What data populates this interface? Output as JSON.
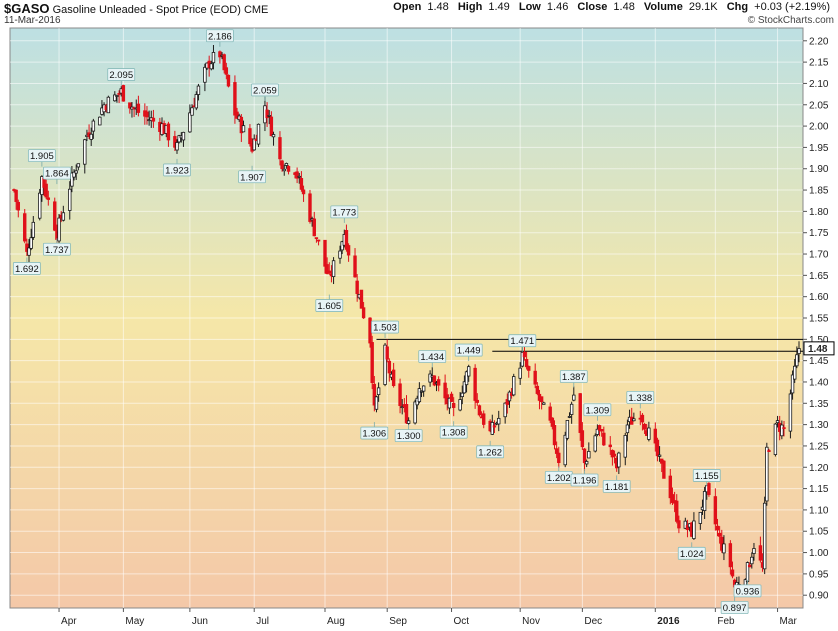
{
  "header": {
    "symbol": "$GASO",
    "description": "Gasoline Unleaded - Spot Price (EOD)",
    "exchange": "CME",
    "date": "11-Mar-2016",
    "open_label": "Open",
    "open": "1.48",
    "high_label": "High",
    "high": "1.49",
    "low_label": "Low",
    "low": "1.46",
    "close_label": "Close",
    "close": "1.48",
    "volume_label": "Volume",
    "volume": "29.1K",
    "chg_label": "Chg",
    "chg": "+0.03 (+2.19%)",
    "brand": "© StockCharts.com"
  },
  "chart_data": {
    "type": "candlestick",
    "title": "",
    "ylim": [
      0.87,
      2.23
    ],
    "yticks": [
      0.9,
      0.95,
      1.0,
      1.05,
      1.1,
      1.15,
      1.2,
      1.25,
      1.3,
      1.35,
      1.4,
      1.45,
      1.5,
      1.55,
      1.6,
      1.65,
      1.7,
      1.75,
      1.8,
      1.85,
      1.9,
      1.95,
      2.0,
      2.05,
      2.1,
      2.15,
      2.2
    ],
    "xticks": [
      {
        "label": "Apr",
        "date": "2015-04-01",
        "bold": false
      },
      {
        "label": "May",
        "date": "2015-05-01",
        "bold": false
      },
      {
        "label": "Jun",
        "date": "2015-06-01",
        "bold": false
      },
      {
        "label": "Jul",
        "date": "2015-07-01",
        "bold": false
      },
      {
        "label": "Aug",
        "date": "2015-08-03",
        "bold": false
      },
      {
        "label": "Sep",
        "date": "2015-09-01",
        "bold": false
      },
      {
        "label": "Oct",
        "date": "2015-10-01",
        "bold": false
      },
      {
        "label": "Nov",
        "date": "2015-11-02",
        "bold": false
      },
      {
        "label": "Dec",
        "date": "2015-12-01",
        "bold": false
      },
      {
        "label": "2016",
        "date": "2016-01-04",
        "bold": true
      },
      {
        "label": "Feb",
        "date": "2016-02-01",
        "bold": false
      },
      {
        "label": "Mar",
        "date": "2016-03-01",
        "bold": false
      }
    ],
    "last_price_label": "1.48",
    "horizontal_lines": [
      1.5,
      1.472
    ],
    "annotations": [
      {
        "date": "2015-03-17",
        "value": 1.692,
        "label": "1.692",
        "pos": "below"
      },
      {
        "date": "2015-03-24",
        "value": 1.905,
        "label": "1.905",
        "pos": "above"
      },
      {
        "date": "2015-03-31",
        "value": 1.864,
        "label": "1.864",
        "pos": "above"
      },
      {
        "date": "2015-03-31",
        "value": 1.737,
        "label": "1.737",
        "pos": "below"
      },
      {
        "date": "2015-04-30",
        "value": 2.095,
        "label": "2.095",
        "pos": "above"
      },
      {
        "date": "2015-05-26",
        "value": 1.923,
        "label": "1.923",
        "pos": "below"
      },
      {
        "date": "2015-06-15",
        "value": 2.186,
        "label": "2.186",
        "pos": "above"
      },
      {
        "date": "2015-07-06",
        "value": 2.059,
        "label": "2.059",
        "pos": "above"
      },
      {
        "date": "2015-06-30",
        "value": 1.907,
        "label": "1.907",
        "pos": "below"
      },
      {
        "date": "2015-08-12",
        "value": 1.773,
        "label": "1.773",
        "pos": "above"
      },
      {
        "date": "2015-08-05",
        "value": 1.605,
        "label": "1.605",
        "pos": "below"
      },
      {
        "date": "2015-08-31",
        "value": 1.503,
        "label": "1.503",
        "pos": "above"
      },
      {
        "date": "2015-08-26",
        "value": 1.306,
        "label": "1.306",
        "pos": "below"
      },
      {
        "date": "2015-09-11",
        "value": 1.3,
        "label": "1.300",
        "pos": "below"
      },
      {
        "date": "2015-09-22",
        "value": 1.434,
        "label": "1.434",
        "pos": "above"
      },
      {
        "date": "2015-10-02",
        "value": 1.308,
        "label": "1.308",
        "pos": "below"
      },
      {
        "date": "2015-10-09",
        "value": 1.449,
        "label": "1.449",
        "pos": "above"
      },
      {
        "date": "2015-10-19",
        "value": 1.262,
        "label": "1.262",
        "pos": "below"
      },
      {
        "date": "2015-11-03",
        "value": 1.471,
        "label": "1.471",
        "pos": "above"
      },
      {
        "date": "2015-11-20",
        "value": 1.202,
        "label": "1.202",
        "pos": "below"
      },
      {
        "date": "2015-11-27",
        "value": 1.387,
        "label": "1.387",
        "pos": "above"
      },
      {
        "date": "2015-12-02",
        "value": 1.196,
        "label": "1.196",
        "pos": "below"
      },
      {
        "date": "2015-12-08",
        "value": 1.309,
        "label": "1.309",
        "pos": "above"
      },
      {
        "date": "2015-12-17",
        "value": 1.181,
        "label": "1.181",
        "pos": "below"
      },
      {
        "date": "2015-12-28",
        "value": 1.338,
        "label": "1.338",
        "pos": "above"
      },
      {
        "date": "2016-01-21",
        "value": 1.024,
        "label": "1.024",
        "pos": "below"
      },
      {
        "date": "2016-01-28",
        "value": 1.155,
        "label": "1.155",
        "pos": "above"
      },
      {
        "date": "2016-02-10",
        "value": 0.897,
        "label": "0.897",
        "pos": "below"
      },
      {
        "date": "2016-02-16",
        "value": 0.936,
        "label": "0.936",
        "pos": "below"
      }
    ],
    "x_start": "2015-03-11",
    "x_end": "2016-03-11",
    "anchors": [
      [
        "2015-03-11",
        1.85
      ],
      [
        "2015-03-17",
        1.7
      ],
      [
        "2015-03-24",
        1.88
      ],
      [
        "2015-03-31",
        1.75
      ],
      [
        "2015-04-06",
        1.86
      ],
      [
        "2015-04-14",
        1.98
      ],
      [
        "2015-04-22",
        2.05
      ],
      [
        "2015-04-30",
        2.08
      ],
      [
        "2015-05-06",
        2.04
      ],
      [
        "2015-05-12",
        2.02
      ],
      [
        "2015-05-19",
        2.0
      ],
      [
        "2015-05-26",
        1.95
      ],
      [
        "2015-06-03",
        2.06
      ],
      [
        "2015-06-10",
        2.15
      ],
      [
        "2015-06-15",
        2.17
      ],
      [
        "2015-06-22",
        2.03
      ],
      [
        "2015-06-30",
        1.95
      ],
      [
        "2015-07-06",
        2.05
      ],
      [
        "2015-07-13",
        1.92
      ],
      [
        "2015-07-20",
        1.9
      ],
      [
        "2015-07-27",
        1.79
      ],
      [
        "2015-08-05",
        1.64
      ],
      [
        "2015-08-12",
        1.75
      ],
      [
        "2015-08-18",
        1.62
      ],
      [
        "2015-08-24",
        1.5
      ],
      [
        "2015-08-26",
        1.33
      ],
      [
        "2015-08-31",
        1.47
      ],
      [
        "2015-09-04",
        1.38
      ],
      [
        "2015-09-11",
        1.31
      ],
      [
        "2015-09-16",
        1.39
      ],
      [
        "2015-09-22",
        1.41
      ],
      [
        "2015-09-28",
        1.36
      ],
      [
        "2015-10-02",
        1.33
      ],
      [
        "2015-10-09",
        1.43
      ],
      [
        "2015-10-14",
        1.33
      ],
      [
        "2015-10-19",
        1.28
      ],
      [
        "2015-10-26",
        1.34
      ],
      [
        "2015-11-03",
        1.46
      ],
      [
        "2015-11-09",
        1.38
      ],
      [
        "2015-11-16",
        1.3
      ],
      [
        "2015-11-20",
        1.22
      ],
      [
        "2015-11-27",
        1.37
      ],
      [
        "2015-12-02",
        1.21
      ],
      [
        "2015-12-08",
        1.29
      ],
      [
        "2015-12-14",
        1.24
      ],
      [
        "2015-12-17",
        1.2
      ],
      [
        "2015-12-22",
        1.3
      ],
      [
        "2015-12-28",
        1.33
      ],
      [
        "2016-01-04",
        1.24
      ],
      [
        "2016-01-11",
        1.14
      ],
      [
        "2016-01-15",
        1.07
      ],
      [
        "2016-01-21",
        1.05
      ],
      [
        "2016-01-28",
        1.14
      ],
      [
        "2016-02-03",
        1.03
      ],
      [
        "2016-02-08",
        0.97
      ],
      [
        "2016-02-10",
        0.92
      ],
      [
        "2016-02-16",
        0.96
      ],
      [
        "2016-02-19",
        1.02
      ],
      [
        "2016-02-23",
        0.96
      ],
      [
        "2016-02-25",
        1.24
      ],
      [
        "2016-03-01",
        1.3
      ],
      [
        "2016-03-04",
        1.29
      ],
      [
        "2016-03-08",
        1.4
      ],
      [
        "2016-03-11",
        1.48
      ]
    ],
    "up_color": "#1a1a1a",
    "down_color": "#e0101a",
    "bg_top": "#bde0e3",
    "bg_mid": "#f5e7a8",
    "bg_bottom": "#f4c8a8"
  }
}
